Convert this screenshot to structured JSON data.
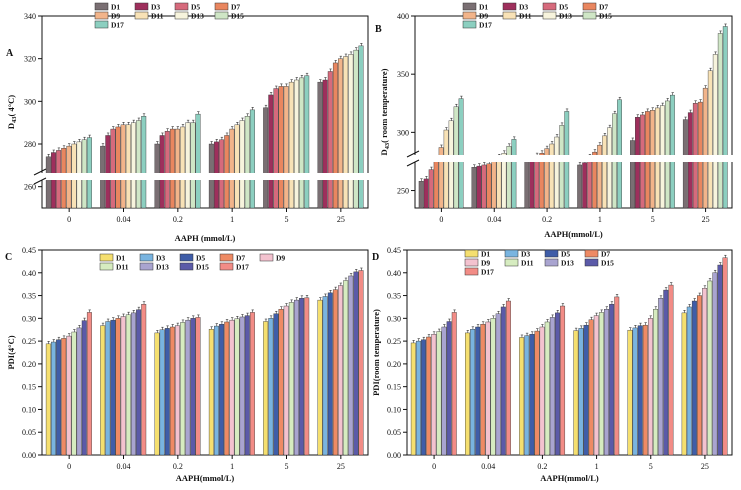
{
  "figure": {
    "colors": [
      "#7a6f73",
      "#9e2f5c",
      "#d66a7c",
      "#e9865f",
      "#f2b48a",
      "#f8e2b6",
      "#f7f4dd",
      "#cfe6c6",
      "#8ccfc0"
    ],
    "colors_pdf": [
      "#f5df6f",
      "#79b4e0",
      "#3f5da8",
      "#ee8a64",
      "#f3c2cf",
      "#d6ecc0",
      "#a9a4d0",
      "#5b5aa8",
      "#f28c86"
    ]
  },
  "chart_data": [
    {
      "panel": "A",
      "type": "bar",
      "title": "",
      "xlabel": "AAPH (mmol/L)",
      "ylabel": "D43(4°C)",
      "ylabel_main": "D",
      "ylabel_sub": "43",
      "ylabel_rest": "(  4°C)",
      "categories": [
        "0",
        "0.04",
        "0.2",
        "1",
        "5",
        "25"
      ],
      "legend": [
        "D1",
        "D3",
        "D5",
        "D7",
        "D9",
        "D11",
        "D13",
        "D15",
        "D17"
      ],
      "yticks": [
        "260",
        "280",
        "300",
        "320",
        "340"
      ],
      "ylim": [
        250,
        340
      ],
      "broken_axis": true,
      "series_values": [
        [
          274,
          276,
          277,
          278,
          279,
          280,
          281,
          282,
          283
        ],
        [
          279,
          284,
          287,
          288,
          289,
          289,
          290,
          291,
          293
        ],
        [
          280,
          284,
          286,
          287,
          287,
          288,
          290,
          290,
          294
        ],
        [
          280,
          281,
          282,
          284,
          287,
          289,
          291,
          293,
          296
        ],
        [
          297,
          303,
          306,
          307,
          307,
          309,
          310,
          311,
          312
        ],
        [
          309,
          310,
          314,
          318,
          320,
          321,
          322,
          324,
          326
        ]
      ]
    },
    {
      "panel": "B",
      "type": "bar",
      "title": "",
      "xlabel": "AAPH(mmol/L)",
      "ylabel": "D43(room temperature)",
      "ylabel_main": "D",
      "ylabel_sub": "43",
      "ylabel_rest": "(  room temperature)",
      "categories": [
        "0",
        "0.04",
        "0.2",
        "1",
        "5",
        "25"
      ],
      "legend": [
        "D1",
        "D3",
        "D5",
        "D7",
        "D9",
        "D11",
        "D13",
        "D15",
        "D17"
      ],
      "yticks": [
        "250",
        "300",
        "350",
        "400"
      ],
      "ylim": [
        235,
        400
      ],
      "broken_axis": true,
      "series_values": [
        [
          258,
          260,
          268,
          276,
          287,
          302,
          310,
          322,
          329
        ],
        [
          270,
          271,
          272,
          273,
          276,
          279,
          282,
          288,
          294
        ],
        [
          276,
          278,
          280,
          282,
          286,
          290,
          296,
          306,
          318
        ],
        [
          272,
          274,
          279,
          283,
          289,
          297,
          304,
          316,
          328
        ],
        [
          293,
          313,
          315,
          318,
          319,
          321,
          323,
          327,
          332
        ],
        [
          311,
          317,
          325,
          326,
          338,
          353,
          367,
          385,
          391
        ]
      ]
    },
    {
      "panel": "C",
      "type": "bar",
      "title": "",
      "xlabel": "AAPH(mmol/L)",
      "ylabel": "PDI(4°C)",
      "categories": [
        "0",
        "0.04",
        "0.2",
        "1",
        "5",
        "25"
      ],
      "legend": [
        "D1",
        "D3",
        "D5",
        "D7",
        "D9",
        "D11",
        "D13",
        "D15",
        "D17"
      ],
      "yticks": [
        "0.00",
        "0.05",
        "0.10",
        "0.15",
        "0.20",
        "0.25",
        "0.30",
        "0.35",
        "0.40",
        "0.45"
      ],
      "ylim": [
        0,
        0.45
      ],
      "series_values": [
        [
          0.244,
          0.248,
          0.253,
          0.256,
          0.261,
          0.27,
          0.279,
          0.295,
          0.313
        ],
        [
          0.284,
          0.293,
          0.296,
          0.3,
          0.304,
          0.308,
          0.312,
          0.319,
          0.331
        ],
        [
          0.268,
          0.275,
          0.278,
          0.281,
          0.284,
          0.291,
          0.296,
          0.3,
          0.302
        ],
        [
          0.276,
          0.283,
          0.287,
          0.292,
          0.296,
          0.299,
          0.303,
          0.306,
          0.313
        ],
        [
          0.293,
          0.3,
          0.31,
          0.32,
          0.327,
          0.335,
          0.34,
          0.344,
          0.345
        ],
        [
          0.34,
          0.348,
          0.356,
          0.363,
          0.372,
          0.383,
          0.393,
          0.402,
          0.405
        ]
      ]
    },
    {
      "panel": "D",
      "type": "bar",
      "title": "",
      "xlabel": "AAPH(mmol/L)",
      "ylabel": "PDI(room temperature)",
      "categories": [
        "0",
        "0.04",
        "0.2",
        "1",
        "5",
        "25"
      ],
      "legend": [
        "D1",
        "D3",
        "D5",
        "D7",
        "D9",
        "D11",
        "D13",
        "D15",
        "D17"
      ],
      "yticks": [
        "0.00",
        "0.05",
        "0.10",
        "0.15",
        "0.20",
        "0.25",
        "0.30",
        "0.35",
        "0.40",
        "0.45"
      ],
      "ylim": [
        0,
        0.45
      ],
      "series_values": [
        [
          0.246,
          0.25,
          0.253,
          0.259,
          0.265,
          0.271,
          0.281,
          0.293,
          0.313
        ],
        [
          0.268,
          0.276,
          0.281,
          0.287,
          0.292,
          0.3,
          0.31,
          0.325,
          0.338
        ],
        [
          0.258,
          0.262,
          0.265,
          0.272,
          0.281,
          0.292,
          0.302,
          0.312,
          0.327
        ],
        [
          0.273,
          0.278,
          0.285,
          0.297,
          0.306,
          0.313,
          0.32,
          0.331,
          0.347
        ],
        [
          0.274,
          0.279,
          0.284,
          0.285,
          0.3,
          0.32,
          0.344,
          0.362,
          0.373
        ],
        [
          0.312,
          0.325,
          0.338,
          0.35,
          0.366,
          0.382,
          0.4,
          0.417,
          0.433
        ]
      ]
    }
  ]
}
